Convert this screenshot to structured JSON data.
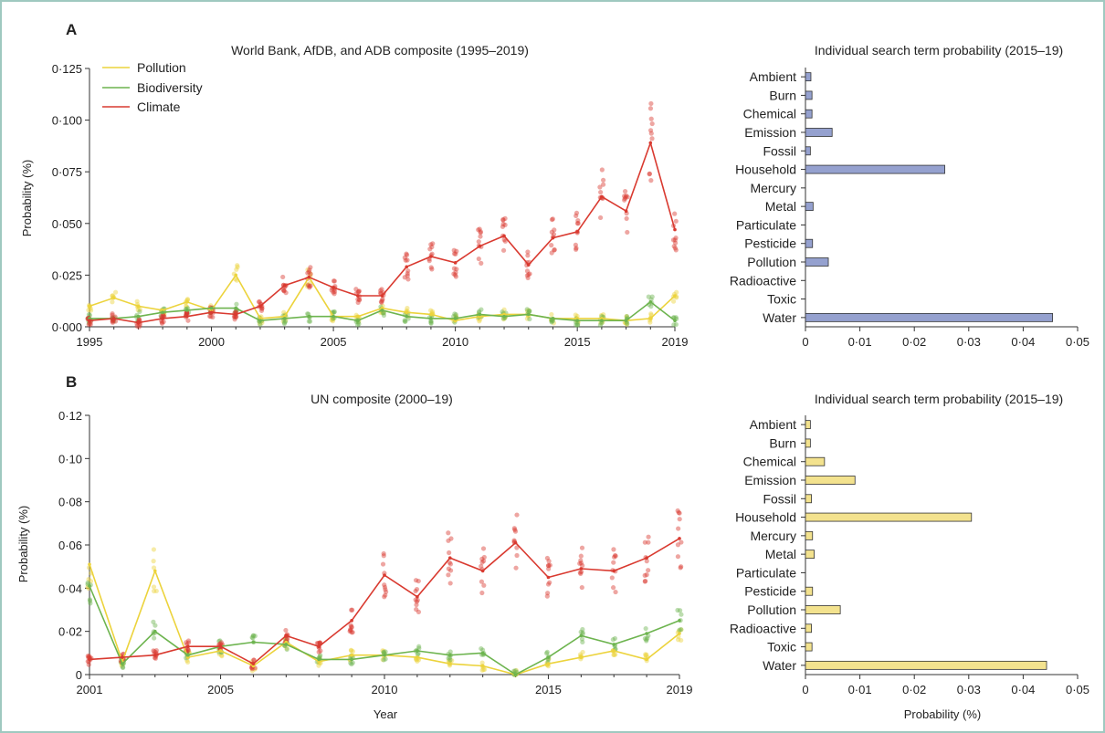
{
  "colors": {
    "pollution": "#ecd33c",
    "biodiversity": "#6db44f",
    "climate": "#d93a30",
    "barA": "#95a1cf",
    "barB": "#f3e28e"
  },
  "chart_data": [
    {
      "id": "A",
      "type": "line",
      "panel_label": "A",
      "title": "World Bank, AfDB, and ADB composite (1995–2019)",
      "ylabel": "Probability (%)",
      "xlabel": "",
      "xlim": [
        1995,
        2019
      ],
      "ylim": [
        0,
        0.125
      ],
      "x_ticks": [
        1995,
        2000,
        2005,
        2010,
        2015,
        2019
      ],
      "y_ticks": [
        "0·000",
        "0·025",
        "0·050",
        "0·075",
        "0·100",
        "0·125"
      ],
      "y_tick_values": [
        0,
        0.025,
        0.05,
        0.075,
        0.1,
        0.125
      ],
      "legend": "top-left",
      "series": [
        {
          "name": "Pollution",
          "key": "pollution",
          "x": [
            1995,
            1996,
            1997,
            1998,
            1999,
            2000,
            2001,
            2002,
            2003,
            2004,
            2005,
            2006,
            2007,
            2008,
            2009,
            2010,
            2011,
            2012,
            2013,
            2014,
            2015,
            2016,
            2017,
            2018,
            2019
          ],
          "y": [
            0.01,
            0.014,
            0.01,
            0.008,
            0.012,
            0.008,
            0.025,
            0.004,
            0.005,
            0.024,
            0.005,
            0.005,
            0.009,
            0.007,
            0.006,
            0.003,
            0.005,
            0.006,
            0.006,
            0.004,
            0.004,
            0.004,
            0.003,
            0.004,
            0.015
          ]
        },
        {
          "name": "Biodiversity",
          "key": "biodiversity",
          "x": [
            1995,
            1996,
            1997,
            1998,
            1999,
            2000,
            2001,
            2002,
            2003,
            2004,
            2005,
            2006,
            2007,
            2008,
            2009,
            2010,
            2011,
            2012,
            2013,
            2014,
            2015,
            2016,
            2017,
            2018,
            2019
          ],
          "y": [
            0.004,
            0.004,
            0.005,
            0.007,
            0.008,
            0.009,
            0.009,
            0.003,
            0.004,
            0.005,
            0.005,
            0.003,
            0.008,
            0.005,
            0.004,
            0.004,
            0.006,
            0.005,
            0.006,
            0.004,
            0.003,
            0.003,
            0.003,
            0.012,
            0.003
          ]
        },
        {
          "name": "Climate",
          "key": "climate",
          "x": [
            1995,
            1996,
            1997,
            1998,
            1999,
            2000,
            2001,
            2002,
            2003,
            2004,
            2005,
            2006,
            2007,
            2008,
            2009,
            2010,
            2011,
            2012,
            2013,
            2014,
            2015,
            2016,
            2017,
            2018,
            2019
          ],
          "y": [
            0.003,
            0.004,
            0.002,
            0.004,
            0.005,
            0.007,
            0.006,
            0.01,
            0.02,
            0.024,
            0.019,
            0.015,
            0.015,
            0.029,
            0.034,
            0.031,
            0.039,
            0.044,
            0.03,
            0.043,
            0.046,
            0.063,
            0.056,
            0.089,
            0.047
          ]
        }
      ]
    },
    {
      "id": "A_bars",
      "type": "bar",
      "orientation": "horizontal",
      "title": "Individual search term probability (2015–19)",
      "xlabel": "",
      "xlim": [
        0,
        0.05
      ],
      "x_ticks": [
        "0",
        "0·01",
        "0·02",
        "0·03",
        "0·04",
        "0·05"
      ],
      "x_tick_values": [
        0,
        0.01,
        0.02,
        0.03,
        0.04,
        0.05
      ],
      "categories": [
        "Ambient",
        "Burn",
        "Chemical",
        "Emission",
        "Fossil",
        "Household",
        "Mercury",
        "Metal",
        "Particulate",
        "Pesticide",
        "Pollution",
        "Radioactive",
        "Toxic",
        "Water"
      ],
      "values": [
        0.001,
        0.0012,
        0.0012,
        0.0049,
        0.0009,
        0.0256,
        0.0,
        0.0014,
        0.0,
        0.0013,
        0.0042,
        0.0,
        0.0,
        0.0454
      ]
    },
    {
      "id": "B",
      "type": "line",
      "panel_label": "B",
      "title": "UN composite (2000–19)",
      "ylabel": "Probability (%)",
      "xlabel": "Year",
      "xlim": [
        2001,
        2019
      ],
      "ylim": [
        0,
        0.12
      ],
      "x_ticks": [
        2001,
        2005,
        2010,
        2015,
        2019
      ],
      "y_ticks": [
        "0",
        "0·02",
        "0·04",
        "0·06",
        "0·08",
        "0·10",
        "0·12"
      ],
      "y_tick_values": [
        0,
        0.02,
        0.04,
        0.06,
        0.08,
        0.1,
        0.12
      ],
      "series": [
        {
          "name": "Pollution",
          "key": "pollution",
          "x": [
            2001,
            2002,
            2003,
            2004,
            2005,
            2006,
            2007,
            2008,
            2009,
            2010,
            2011,
            2012,
            2013,
            2014,
            2015,
            2016,
            2017,
            2018,
            2019
          ],
          "y": [
            0.051,
            0.006,
            0.048,
            0.008,
            0.011,
            0.004,
            0.015,
            0.006,
            0.009,
            0.009,
            0.008,
            0.005,
            0.004,
            0.0,
            0.005,
            0.008,
            0.011,
            0.007,
            0.019
          ]
        },
        {
          "name": "Biodiversity",
          "key": "biodiversity",
          "x": [
            2001,
            2002,
            2003,
            2004,
            2005,
            2006,
            2007,
            2008,
            2009,
            2010,
            2011,
            2012,
            2013,
            2014,
            2015,
            2016,
            2017,
            2018,
            2019
          ],
          "y": [
            0.041,
            0.005,
            0.02,
            0.009,
            0.013,
            0.015,
            0.014,
            0.007,
            0.007,
            0.009,
            0.011,
            0.009,
            0.01,
            0.0,
            0.008,
            0.018,
            0.014,
            0.019,
            0.025
          ]
        },
        {
          "name": "Climate",
          "key": "climate",
          "x": [
            2001,
            2002,
            2003,
            2004,
            2005,
            2006,
            2007,
            2008,
            2009,
            2010,
            2011,
            2012,
            2013,
            2014,
            2015,
            2016,
            2017,
            2018,
            2019
          ],
          "y": [
            0.007,
            0.008,
            0.009,
            0.013,
            0.013,
            0.005,
            0.018,
            0.013,
            0.025,
            0.046,
            0.036,
            0.054,
            0.048,
            0.061,
            0.045,
            0.049,
            0.048,
            0.054,
            0.063
          ]
        }
      ]
    },
    {
      "id": "B_bars",
      "type": "bar",
      "orientation": "horizontal",
      "title": "Individual search term probability (2015–19)",
      "xlabel": "Probability (%)",
      "xlim": [
        0,
        0.05
      ],
      "x_ticks": [
        "0",
        "0·01",
        "0·02",
        "0·03",
        "0·04",
        "0·05"
      ],
      "x_tick_values": [
        0,
        0.01,
        0.02,
        0.03,
        0.04,
        0.05
      ],
      "categories": [
        "Ambient",
        "Burn",
        "Chemical",
        "Emission",
        "Fossil",
        "Household",
        "Mercury",
        "Metal",
        "Particulate",
        "Pesticide",
        "Pollution",
        "Radioactive",
        "Toxic",
        "Water"
      ],
      "values": [
        0.0009,
        0.0009,
        0.0035,
        0.0091,
        0.0011,
        0.0305,
        0.0013,
        0.0016,
        0.0,
        0.0013,
        0.0064,
        0.0011,
        0.0012,
        0.0443
      ]
    }
  ]
}
